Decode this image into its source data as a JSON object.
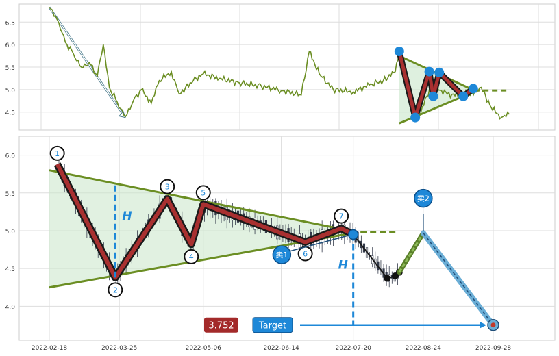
{
  "chart_data": [
    {
      "type": "line",
      "panel": "overview",
      "y_ticks": [
        "6.5",
        "6.0",
        "5.5",
        "5.0",
        "4.5"
      ],
      "ylim": [
        4.1,
        6.9
      ],
      "grid": true,
      "colors": {
        "line": "#6b8e23",
        "pattern": "#6b8e23",
        "point": "#1e88d8",
        "fill": "#c8e6c9"
      },
      "series": [
        {
          "values": [
            {
              "x": "2022-02-18",
              "y": 6.83
            },
            {
              "x": "2022-02-22",
              "y": 6.55
            },
            {
              "x": "2022-02-26",
              "y": 6.05
            },
            {
              "x": "2022-03-02",
              "y": 5.8
            },
            {
              "x": "2022-03-06",
              "y": 5.5
            },
            {
              "x": "2022-03-10",
              "y": 5.6
            },
            {
              "x": "2022-03-14",
              "y": 5.3
            },
            {
              "x": "2022-03-17",
              "y": 6.0
            },
            {
              "x": "2022-03-20",
              "y": 5.05
            },
            {
              "x": "2022-03-24",
              "y": 4.72
            },
            {
              "x": "2022-03-28",
              "y": 4.4
            },
            {
              "x": "2022-04-01",
              "y": 4.75
            },
            {
              "x": "2022-04-05",
              "y": 5.0
            },
            {
              "x": "2022-04-10",
              "y": 4.7
            },
            {
              "x": "2022-04-14",
              "y": 5.2
            },
            {
              "x": "2022-04-20",
              "y": 5.4
            },
            {
              "x": "2022-04-24",
              "y": 4.9
            },
            {
              "x": "2022-05-01",
              "y": 5.2
            },
            {
              "x": "2022-05-06",
              "y": 5.35
            },
            {
              "x": "2022-05-14",
              "y": 5.25
            },
            {
              "x": "2022-05-24",
              "y": 5.15
            },
            {
              "x": "2022-06-04",
              "y": 5.08
            },
            {
              "x": "2022-06-14",
              "y": 4.98
            },
            {
              "x": "2022-06-24",
              "y": 4.88
            },
            {
              "x": "2022-06-28",
              "y": 5.85
            },
            {
              "x": "2022-07-03",
              "y": 5.35
            },
            {
              "x": "2022-07-10",
              "y": 5.0
            },
            {
              "x": "2022-07-20",
              "y": 4.95
            },
            {
              "x": "2022-07-28",
              "y": 5.1
            },
            {
              "x": "2022-08-04",
              "y": 5.2
            },
            {
              "x": "2022-08-10",
              "y": 5.4
            },
            {
              "x": "2022-08-12",
              "y": 5.85
            },
            {
              "x": "2022-08-20",
              "y": 4.38
            },
            {
              "x": "2022-08-22",
              "y": 4.42
            },
            {
              "x": "2022-08-28",
              "y": 5.1
            },
            {
              "x": "2022-09-05",
              "y": 4.9
            },
            {
              "x": "2022-09-15",
              "y": 4.85
            },
            {
              "x": "2022-09-22",
              "y": 5.05
            },
            {
              "x": "2022-09-27",
              "y": 4.6
            },
            {
              "x": "2022-10-02",
              "y": 4.38
            },
            {
              "x": "2022-10-06",
              "y": 4.45
            }
          ]
        }
      ],
      "pattern_points": [
        {
          "x": "2022-08-12",
          "y": 5.85
        },
        {
          "x": "2022-08-20",
          "y": 4.38
        },
        {
          "x": "2022-08-27",
          "y": 5.4
        },
        {
          "x": "2022-08-29",
          "y": 4.85
        },
        {
          "x": "2022-09-01",
          "y": 5.38
        },
        {
          "x": "2022-09-13",
          "y": 4.85
        },
        {
          "x": "2022-09-18",
          "y": 5.02
        }
      ],
      "trend_lines": [
        [
          {
            "x": "2022-08-12",
            "y": 5.75
          },
          {
            "x": "2022-09-20",
            "y": 4.95
          }
        ],
        [
          {
            "x": "2022-08-12",
            "y": 4.25
          },
          {
            "x": "2022-09-20",
            "y": 4.98
          }
        ]
      ],
      "extension_line": [
        {
          "x": "2022-09-14",
          "y": 4.98
        },
        {
          "x": "2022-10-06",
          "y": 4.98
        }
      ],
      "arrow": [
        {
          "x": "2022-02-18",
          "y": 6.83
        },
        {
          "x": "2022-03-28",
          "y": 4.38
        }
      ]
    },
    {
      "type": "candlestick",
      "panel": "detail",
      "x_ticks": [
        "2022-02-18",
        "2022-03-25",
        "2022-05-06",
        "2022-06-14",
        "2022-07-20",
        "2022-08-24",
        "2022-09-28"
      ],
      "y_ticks": [
        "6.0",
        "5.5",
        "5.0",
        "4.5",
        "4.0"
      ],
      "ylim": [
        3.55,
        6.25
      ],
      "grid": true,
      "colors": {
        "zigzag_outer": "#1a1a1a",
        "zigzag_inner": "#a83030",
        "trend": "#6b8e23",
        "fill": "#c8e6c9",
        "h_line": "#1e88d8",
        "target_line": "#1e88d8",
        "label_circle": "#1e88d8",
        "forecast": "#1a1a1a",
        "sell_path": "#6baed6"
      },
      "pivots": [
        {
          "label": "1",
          "x": "2022-02-22",
          "y": 5.88
        },
        {
          "label": "2",
          "x": "2022-03-23",
          "y": 4.38
        },
        {
          "label": "3",
          "x": "2022-04-18",
          "y": 5.42
        },
        {
          "label": "4",
          "x": "2022-04-30",
          "y": 4.82
        },
        {
          "label": "5",
          "x": "2022-05-06",
          "y": 5.35
        },
        {
          "label": "6",
          "x": "2022-06-26",
          "y": 4.85
        },
        {
          "label": "7",
          "x": "2022-07-14",
          "y": 5.03
        }
      ],
      "breakout": {
        "x": "2022-07-20",
        "y": 4.95
      },
      "h_labels": [
        "H",
        "H"
      ],
      "forecast_path": [
        {
          "x": "2022-07-20",
          "y": 4.95
        },
        {
          "x": "2022-08-06",
          "y": 4.37
        },
        {
          "x": "2022-08-10",
          "y": 4.4
        },
        {
          "x": "2022-08-12",
          "y": 4.45
        }
      ],
      "rally_path": [
        {
          "x": "2022-08-12",
          "y": 4.45
        },
        {
          "x": "2022-08-24",
          "y": 4.97
        }
      ],
      "decline_path": [
        {
          "x": "2022-08-24",
          "y": 4.97
        },
        {
          "x": "2022-09-28",
          "y": 3.75
        }
      ],
      "sell_labels": [
        {
          "label": "卖1",
          "x": "2022-06-17",
          "y": 4.7
        },
        {
          "label": "卖2",
          "x": "2022-08-24",
          "y": 5.32
        }
      ],
      "target": {
        "label": "Target",
        "value": "3.752",
        "y": 3.752
      },
      "trend_upper": [
        {
          "x": "2022-02-18",
          "y": 5.8
        },
        {
          "x": "2022-07-22",
          "y": 4.98
        }
      ],
      "trend_lower": [
        {
          "x": "2022-02-18",
          "y": 4.25
        },
        {
          "x": "2022-07-22",
          "y": 4.98
        }
      ],
      "trend_extension": [
        {
          "x": "2022-07-14",
          "y": 4.98
        },
        {
          "x": "2022-08-11",
          "y": 4.98
        }
      ]
    }
  ]
}
